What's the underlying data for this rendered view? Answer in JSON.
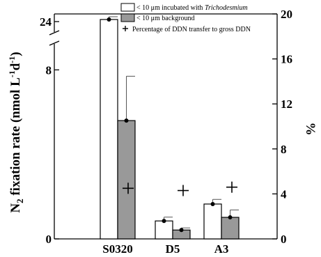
{
  "chart_data": {
    "type": "bar",
    "categories": [
      "S0320",
      "D5",
      "A3"
    ],
    "series": [
      {
        "name": "< 10 μm incubated with Trichodesmium",
        "legend_prefix": "< 10 μm incubated with ",
        "legend_italic": "Trichodesmium",
        "color": "#ffffff",
        "values": [
          24.5,
          0.85,
          1.65
        ],
        "errors": [
          0.3,
          0.18,
          0.22
        ]
      },
      {
        "name": "< 10 μm background",
        "color": "#999999",
        "values": [
          5.6,
          0.42,
          1.02
        ],
        "errors": [
          2.1,
          0.1,
          0.35
        ]
      }
    ],
    "percent_series": {
      "name": "Percentage of DDN transfer to gross DDN",
      "values": [
        4.5,
        4.3,
        4.6
      ]
    },
    "ylabel_left": "N₂ fixation rate (nmol L⁻¹d⁻¹)",
    "ylabel_left_parts": {
      "main": "N",
      "sub": "2",
      "mid": " fixation rate (nmol L",
      "sup1": "-1",
      "mid2": "d",
      "sup2": "-1",
      "end": ")"
    },
    "ylabel_right": "%",
    "y_left_ticks": [
      0,
      8,
      24
    ],
    "y_left_broken_axis": {
      "lower_range": [
        0,
        9
      ],
      "upper_range": [
        23,
        25
      ],
      "break": true
    },
    "y_right_ticks": [
      0,
      4,
      8,
      12,
      16,
      20
    ],
    "y_right_range": [
      0,
      20
    ],
    "grid": false,
    "legend_position": "top-right"
  }
}
